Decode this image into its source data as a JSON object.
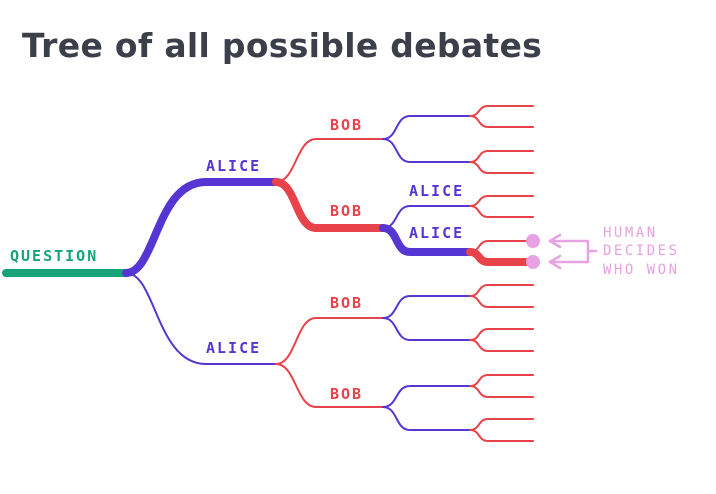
{
  "title": "Tree of all possible debates",
  "labels": {
    "question": "QUESTION",
    "alice_top": "ALICE",
    "alice_bottom": "ALICE",
    "bob_1": "BOB",
    "bob_2": "BOB",
    "bob_3": "BOB",
    "bob_4": "BOB",
    "alice_leaf_1": "ALICE",
    "alice_leaf_2": "ALICE"
  },
  "annotation": {
    "line1": "HUMAN",
    "line2": "DECIDES",
    "line3": "WHO WON"
  },
  "colors": {
    "question": "#16a37a",
    "alice": "#5636d3",
    "bob": "#e8434b",
    "human": "#e6a2e3",
    "title": "#3a3f4a"
  }
}
